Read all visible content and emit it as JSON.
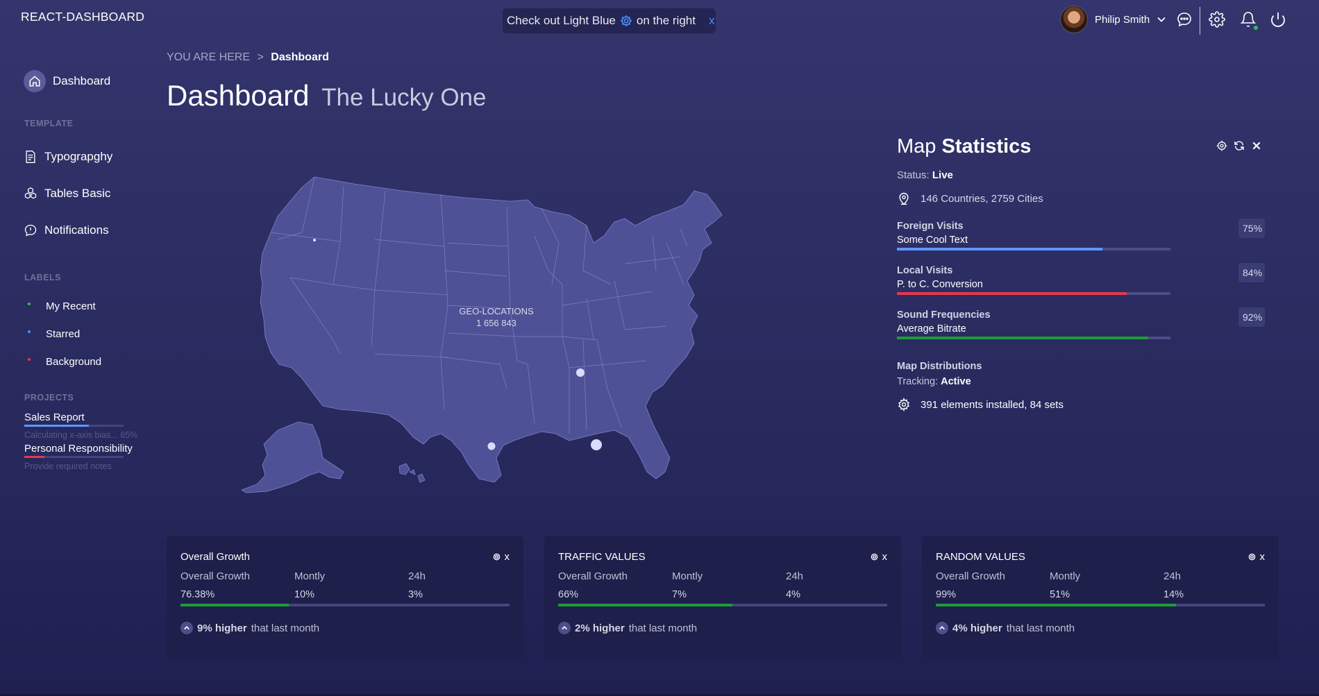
{
  "header": {
    "brand": "REACT-DASHBOARD",
    "promo": {
      "before": "Check out Light Blue",
      "after": "on the right",
      "close": "x"
    },
    "user": {
      "name": "Philip Smith"
    }
  },
  "sidebar": {
    "dashboard": "Dashboard",
    "template_heading": "TEMPLATE",
    "template_items": [
      {
        "label": "Typograpghy",
        "icon": "document-icon"
      },
      {
        "label": "Tables Basic",
        "icon": "cubes-icon"
      },
      {
        "label": "Notifications",
        "icon": "chat-bubble-icon"
      }
    ],
    "labels_heading": "LABELS",
    "labels": [
      {
        "label": "My Recent",
        "color": "#3fb85f"
      },
      {
        "label": "Starred",
        "color": "#4c8dff"
      },
      {
        "label": "Background",
        "color": "#e5394b"
      }
    ],
    "projects_heading": "PROJECTS",
    "projects": [
      {
        "title": "Sales Report",
        "sub": "Calculating x-axis bias... 65%",
        "progress": 0.65,
        "color": "#5f97ff"
      },
      {
        "title": "Personal Responsibility",
        "sub": "Provide required notes",
        "progress": 0.2,
        "color": "#e5394b"
      }
    ]
  },
  "main": {
    "breadcrumb": {
      "prefix": "YOU ARE HERE",
      "sep": ">",
      "current": "Dashboard"
    },
    "title": "Dashboard",
    "subtitle": "The Lucky One",
    "map": {
      "label": "GEO-LOCATIONS",
      "value": "1 656 843"
    }
  },
  "map_stats": {
    "title_light": "Map",
    "title_bold": "Statistics",
    "status_label": "Status:",
    "status_value": "Live",
    "locations": "146 Countries, 2759 Cities",
    "stats": [
      {
        "name": "Foreign Visits",
        "sub": "Some Cool Text",
        "pct_text": "75%",
        "value": 0.75,
        "color": "#5f97ff"
      },
      {
        "name": "Local Visits",
        "sub": "P. to C. Conversion",
        "pct_text": "84%",
        "value": 0.84,
        "color": "#e5394b"
      },
      {
        "name": "Sound Frequencies",
        "sub": "Average Bitrate",
        "pct_text": "92%",
        "value": 0.92,
        "color": "#1f9b3a"
      }
    ],
    "distributions_title": "Map Distributions",
    "tracking_label": "Tracking:",
    "tracking_value": "Active",
    "elements": "391 elements installed, 84 sets"
  },
  "cards": [
    {
      "title": "Overall Growth",
      "cols": [
        {
          "label": "Overall Growth",
          "value": "76.38%"
        },
        {
          "label": "Montly",
          "value": "10%"
        },
        {
          "label": "24h",
          "value": "3%"
        }
      ],
      "progress": 0.33,
      "foot_bold": "9% higher",
      "foot_rest": "that last month"
    },
    {
      "title": "TRAFFIC VALUES",
      "cols": [
        {
          "label": "Overall Growth",
          "value": "66%"
        },
        {
          "label": "Montly",
          "value": "7%"
        },
        {
          "label": "24h",
          "value": "4%"
        }
      ],
      "progress": 0.53,
      "foot_bold": "2% higher",
      "foot_rest": "that last month"
    },
    {
      "title": "RANDOM VALUES",
      "cols": [
        {
          "label": "Overall Growth",
          "value": "99%"
        },
        {
          "label": "Montly",
          "value": "51%"
        },
        {
          "label": "24h",
          "value": "14%"
        }
      ],
      "progress": 0.73,
      "foot_bold": "4% higher",
      "foot_rest": "that last month"
    }
  ],
  "colors": {
    "accent_blue": "#4c8dff",
    "progress_green": "#1f9b3a",
    "progress_red": "#e5394b",
    "progress_blue": "#5f97ff"
  }
}
